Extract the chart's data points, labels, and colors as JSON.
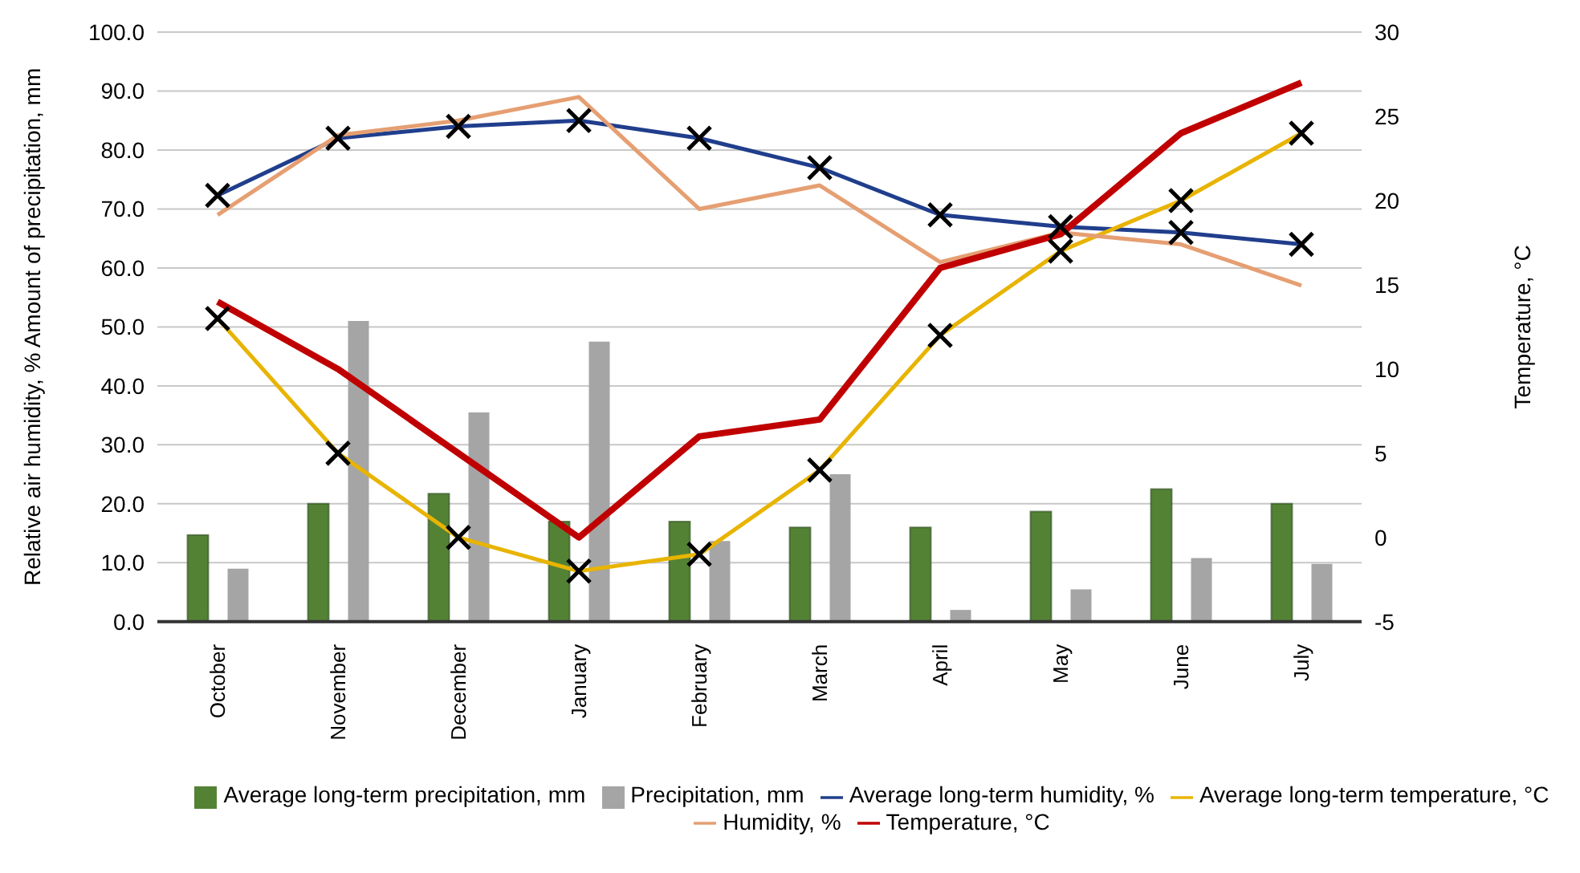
{
  "chart_data": {
    "type": "bar",
    "categories": [
      "October",
      "November",
      "December",
      "January",
      "February",
      "March",
      "April",
      "May",
      "June",
      "July"
    ],
    "ylabel": "Relative air humidity, % Amount of precipitation, mm",
    "y2label": "Temperature, °C",
    "ylim": [
      0,
      100
    ],
    "yticks": [
      {
        "value": 0,
        "label": "0.0"
      },
      {
        "value": 10,
        "label": "10.0"
      },
      {
        "value": 20,
        "label": "20.0"
      },
      {
        "value": 30,
        "label": "30.0"
      },
      {
        "value": 40,
        "label": "40.0"
      },
      {
        "value": 50,
        "label": "50.0"
      },
      {
        "value": 60,
        "label": "60.0"
      },
      {
        "value": 70,
        "label": "70.0"
      },
      {
        "value": 80,
        "label": "80.0"
      },
      {
        "value": 90,
        "label": "90.0"
      },
      {
        "value": 100,
        "label": "100.0"
      }
    ],
    "y2lim": [
      -5,
      30
    ],
    "y2ticks": [
      -5,
      0,
      5,
      10,
      15,
      20,
      25,
      30
    ],
    "grid": "y",
    "legend": "bottom",
    "series": [
      {
        "name": "Average long-term precipitation, mm",
        "color": "#548235",
        "values": [
          14.7,
          20,
          21.7,
          17,
          17,
          16,
          16,
          18.7,
          22.5,
          20
        ]
      },
      {
        "name": "Precipitation, mm",
        "color": "#a5a5a5",
        "values": [
          9,
          51,
          35.5,
          47.5,
          13.7,
          25,
          2,
          5.5,
          10.8,
          9.8
        ]
      },
      {
        "name": "Average long-term humidity, %",
        "type": "line",
        "color": "#203e8c",
        "marker": "cross",
        "values": [
          72.3,
          82,
          84,
          85,
          82,
          77,
          69,
          67,
          66,
          64
        ]
      },
      {
        "name": "Average long-term temperature, °C",
        "type": "line",
        "axis": "y2",
        "color": "#e8b400",
        "marker": "cross",
        "values": [
          13,
          5,
          0,
          -2,
          -1,
          4,
          12,
          17,
          20,
          24
        ]
      },
      {
        "name": "Humidity, %",
        "type": "line",
        "color": "#e59f72",
        "values": [
          69,
          82.5,
          85,
          89,
          70,
          74,
          61,
          66,
          64,
          57
        ]
      },
      {
        "name": "Temperature, °C",
        "type": "line",
        "axis": "y2",
        "color": "#c00000",
        "values": [
          14,
          10,
          5,
          0,
          6,
          7,
          16,
          18,
          24,
          27
        ]
      }
    ]
  }
}
